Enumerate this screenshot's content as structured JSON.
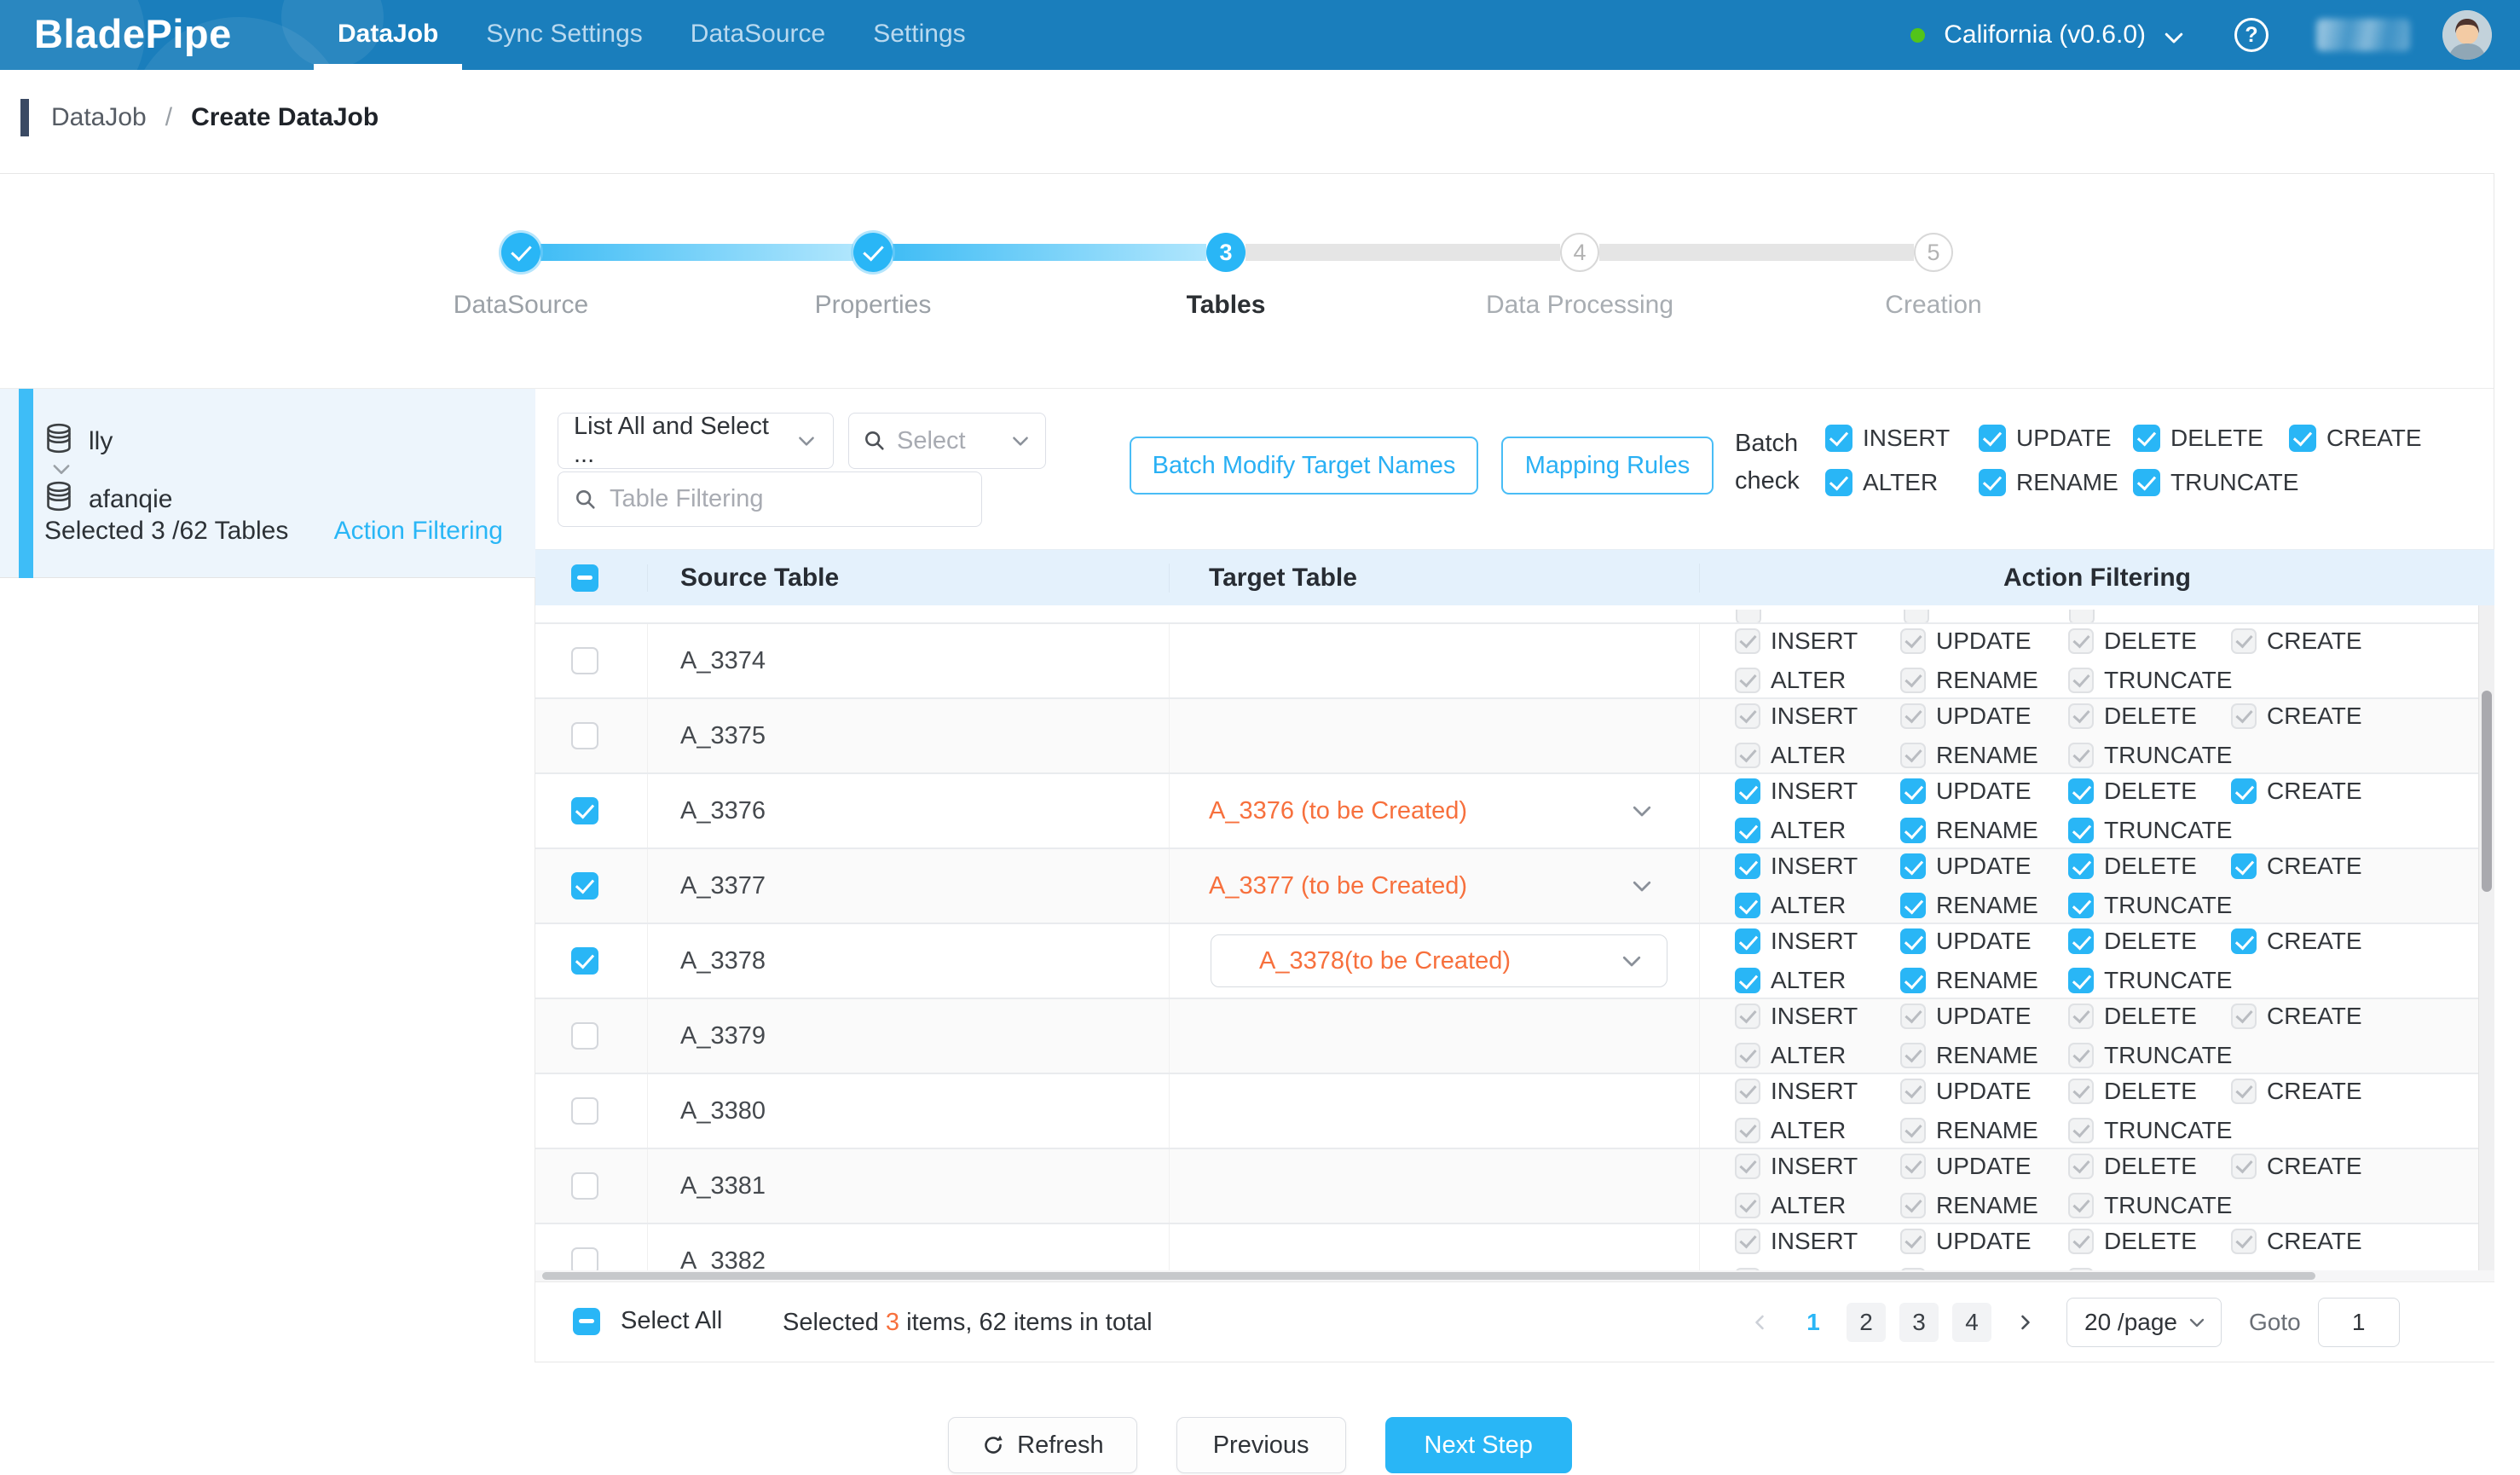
{
  "nav": {
    "brand": "BladePipe",
    "items": [
      {
        "label": "DataJob",
        "active": true
      },
      {
        "label": "Sync Settings",
        "active": false
      },
      {
        "label": "DataSource",
        "active": false
      },
      {
        "label": "Settings",
        "active": false
      }
    ],
    "region_label": "California (v0.6.0)",
    "help_glyph": "?"
  },
  "breadcrumb": {
    "parent": "DataJob",
    "separator": "/",
    "current": "Create DataJob"
  },
  "stepper": {
    "steps": [
      {
        "num": "1",
        "label": "DataSource",
        "state": "done"
      },
      {
        "num": "2",
        "label": "Properties",
        "state": "done"
      },
      {
        "num": "3",
        "label": "Tables",
        "state": "active"
      },
      {
        "num": "4",
        "label": "Data Processing",
        "state": "pending"
      },
      {
        "num": "5",
        "label": "Creation",
        "state": "pending"
      }
    ]
  },
  "sidebar": {
    "source_db": "lly",
    "target_db": "afanqie",
    "selection_summary": "Selected 3 /62 Tables",
    "action_filtering_link": "Action Filtering"
  },
  "toolbar": {
    "list_mode_value": "List All and Select ...",
    "select_placeholder": "Select",
    "filter_placeholder": "Table Filtering",
    "batch_modify_label": "Batch Modify Target Names",
    "mapping_rules_label": "Mapping Rules",
    "batch_check_line1": "Batch",
    "batch_check_line2": "check"
  },
  "actions_matrix": {
    "row1": [
      "INSERT",
      "UPDATE",
      "DELETE",
      "CREATE"
    ],
    "row2": [
      "ALTER",
      "RENAME",
      "TRUNCATE"
    ]
  },
  "table": {
    "header_source": "Source Table",
    "header_target": "Target Table",
    "header_actions": "Action Filtering",
    "rows": [
      {
        "source": "A_3374",
        "target": "",
        "checked": false
      },
      {
        "source": "A_3375",
        "target": "",
        "checked": false
      },
      {
        "source": "A_3376",
        "target": "A_3376 (to be Created)",
        "checked": true,
        "boxed": false
      },
      {
        "source": "A_3377",
        "target": "A_3377 (to be Created)",
        "checked": true,
        "boxed": false
      },
      {
        "source": "A_3378",
        "target": "A_3378(to be Created)",
        "checked": true,
        "boxed": true
      },
      {
        "source": "A_3379",
        "target": "",
        "checked": false
      },
      {
        "source": "A_3380",
        "target": "",
        "checked": false
      },
      {
        "source": "A_3381",
        "target": "",
        "checked": false
      },
      {
        "source": "A_3382",
        "target": "",
        "checked": false,
        "clipped": true
      }
    ]
  },
  "footer": {
    "select_all_label": "Select All",
    "selected_prefix": "Selected ",
    "selected_count": "3",
    "selected_suffix": " items, 62 items in total",
    "pages": [
      "1",
      "2",
      "3",
      "4"
    ],
    "active_page": "1",
    "page_size_value": "20 /page",
    "goto_label": "Goto",
    "goto_value": "1"
  },
  "bottom_actions": {
    "refresh": "Refresh",
    "previous": "Previous",
    "next": "Next Step"
  },
  "colors": {
    "nav_blue": "#1a7ebc",
    "accent_blue": "#29b6f6",
    "warn_orange": "#f7703d",
    "status_green": "#52c41a"
  }
}
